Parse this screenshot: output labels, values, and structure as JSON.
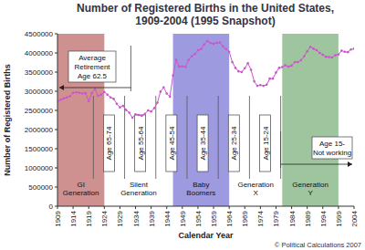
{
  "chart_data": {
    "type": "line",
    "title": "Number of Registered Births in the United States, 1909-2004 (1995 Snapshot)",
    "x_label": "Calendar Year",
    "y_label": "Number of Registered Births",
    "source": "© Political Calculations 2007",
    "grid": false,
    "xlim": [
      1909,
      2004
    ],
    "xticks": [
      1909,
      1914,
      1919,
      1924,
      1929,
      1934,
      1939,
      1944,
      1949,
      1954,
      1959,
      1964,
      1969,
      1974,
      1979,
      1984,
      1989,
      1994,
      1999,
      2004
    ],
    "ylim": [
      0,
      4500000
    ],
    "yticks": [
      0,
      500000,
      1000000,
      1500000,
      2000000,
      2500000,
      3000000,
      3500000,
      4000000,
      4500000
    ],
    "x": [
      1909,
      1910,
      1911,
      1912,
      1913,
      1914,
      1915,
      1916,
      1917,
      1918,
      1919,
      1920,
      1921,
      1922,
      1923,
      1924,
      1925,
      1926,
      1927,
      1928,
      1929,
      1930,
      1931,
      1932,
      1933,
      1934,
      1935,
      1936,
      1937,
      1938,
      1939,
      1940,
      1941,
      1942,
      1943,
      1944,
      1945,
      1946,
      1947,
      1948,
      1949,
      1950,
      1951,
      1952,
      1953,
      1954,
      1955,
      1956,
      1957,
      1958,
      1959,
      1960,
      1961,
      1962,
      1963,
      1964,
      1965,
      1966,
      1967,
      1968,
      1969,
      1970,
      1971,
      1972,
      1973,
      1974,
      1975,
      1976,
      1977,
      1978,
      1979,
      1980,
      1981,
      1982,
      1983,
      1984,
      1985,
      1986,
      1987,
      1988,
      1989,
      1990,
      1991,
      1992,
      1993,
      1994,
      1995,
      1996,
      1997,
      1998,
      1999,
      2000,
      2001,
      2002,
      2003,
      2004
    ],
    "series": [
      {
        "color": "#cc55cc",
        "marker": "circle",
        "values": [
          2720000,
          2780000,
          2810000,
          2840000,
          2870000,
          2960000,
          2970000,
          2960000,
          2940000,
          2950000,
          2740000,
          2950000,
          3060000,
          2880000,
          2910000,
          2980000,
          2910000,
          2840000,
          2800000,
          2670000,
          2580000,
          2620000,
          2510000,
          2440000,
          2310000,
          2400000,
          2380000,
          2360000,
          2410000,
          2500000,
          2470000,
          2560000,
          2700000,
          2990000,
          3100000,
          2940000,
          2860000,
          3410000,
          3820000,
          3640000,
          3650000,
          3630000,
          3820000,
          3910000,
          3970000,
          4070000,
          4100000,
          4220000,
          4310000,
          4260000,
          4240000,
          4260000,
          4270000,
          4170000,
          4100000,
          4030000,
          3760000,
          3610000,
          3520000,
          3500000,
          3600000,
          3730000,
          3560000,
          3260000,
          3140000,
          3160000,
          3140000,
          3170000,
          3330000,
          3330000,
          3490000,
          3610000,
          3630000,
          3680000,
          3640000,
          3670000,
          3760000,
          3760000,
          3810000,
          3910000,
          4040000,
          4160000,
          4110000,
          4070000,
          4000000,
          3950000,
          3900000,
          3890000,
          3880000,
          3940000,
          3960000,
          4060000,
          4030000,
          4020000,
          4090000,
          4110000
        ]
      }
    ],
    "generations": [
      {
        "label": [
          "GI",
          "Generation"
        ],
        "start": 1909,
        "end": 1924,
        "color": "#cf9090"
      },
      {
        "label": [
          "Silent",
          "Generation"
        ],
        "start": 1925,
        "end": 1945
      },
      {
        "label": [
          "Baby",
          "Boomers"
        ],
        "start": 1946,
        "end": 1964,
        "color": "#9d9ae0"
      },
      {
        "label": [
          "Generation",
          "X"
        ],
        "start": 1965,
        "end": 1980
      },
      {
        "label": [
          "Generation",
          "Y"
        ],
        "start": 1981,
        "end": 1999,
        "color": "#9fc59f"
      }
    ],
    "age_bands": [
      {
        "label": "Age 65-74",
        "start": 1920.5,
        "end": 1930.5
      },
      {
        "label": "Age 55-64",
        "start": 1930.5,
        "end": 1940.5
      },
      {
        "label": "Age 45-54",
        "start": 1940.5,
        "end": 1950.5
      },
      {
        "label": "Age 35-44",
        "start": 1950.5,
        "end": 1960.5
      },
      {
        "label": "Age 25-34",
        "start": 1960.5,
        "end": 1970.5
      },
      {
        "label": "Age 15-24",
        "start": 1970.5,
        "end": 1980.5
      }
    ],
    "callouts": [
      {
        "label": [
          "Average",
          "Retirement",
          "Age 62.5"
        ],
        "x_from": 1932.5,
        "x_to": 1909
      },
      {
        "label": [
          "Age 15-",
          "Not working"
        ],
        "x_from": 1980.5,
        "x_to": 2004
      }
    ]
  }
}
